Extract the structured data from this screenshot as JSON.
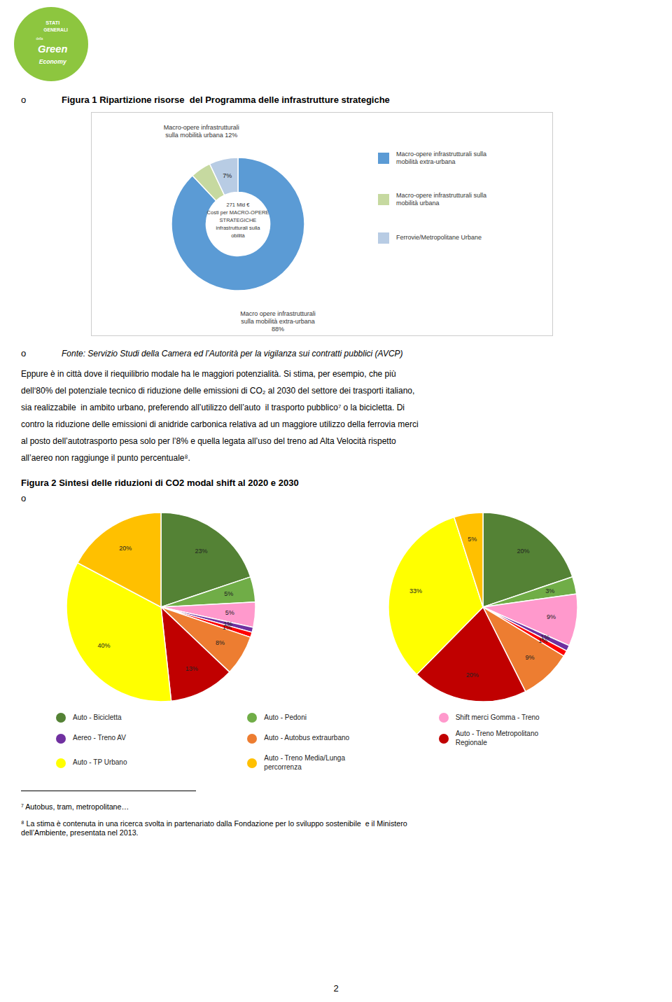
{
  "chart_data": [
    {
      "type": "donut",
      "title": "Figura 1 Ripartizione risorse  del Programma delle infrastrutture strategiche",
      "categories": [
        "Macro-opere infrastrutturali sulla\nmobilità extra-urbana",
        "Macro-opere infrastrutturali sulla\nmobilità urbana",
        "Ferrovie/Metropolitane Urbane"
      ],
      "values": [
        88,
        5,
        7
      ],
      "colors": [
        "#5b9bd5",
        "#c6d9a0",
        "#b8cce4"
      ],
      "value_labels": [
        null,
        null,
        "7%"
      ],
      "data_labels": true,
      "legend": "right",
      "annotations": [
        "271 Mld €\nCosti per MACRO-OPERE\nSTRATEGICHE\ninfrastrutturali sulla\nobilità",
        "Macro-opere infrastrutturali\nsulla mobilità urbana 12%",
        "Macro opere infrastrutturali\nsulla mobilità extra-urbana\n88%"
      ]
    },
    {
      "type": "pie",
      "title": "Figura 2 Sintesi delle riduzioni di CO2 modal shift al 2020 e 2030",
      "categories": [
        "Auto - Bicicletta",
        "Auto - Pedoni",
        "Shift merci Gomma - Treno",
        "Aereo - Treno AV",
        null,
        "Auto - Autobus extraurbano",
        "Auto - Treno Metropolitano\nRegionale",
        "Auto - TP Urbano",
        "Auto - Treno Media/Lunga\npercorrenza"
      ],
      "values": [
        23,
        5,
        5,
        1,
        1,
        8,
        13,
        40,
        20
      ],
      "value_labels": [
        "23%",
        "5%",
        "5%",
        "1%",
        "1%",
        "8%",
        "13%",
        "40%",
        "20%"
      ],
      "colors": [
        "#548235",
        "#70ad47",
        "#ff99cc",
        "#7030a0",
        "#ff0000",
        "#ed7d31",
        "#c00000",
        "#ffff00",
        "#ffc000"
      ],
      "data_labels": true,
      "legend": "bottom"
    },
    {
      "type": "pie",
      "categories": [
        "Auto - Bicicletta",
        "Auto - Pedoni",
        "Shift merci Gomma - Treno",
        "Aereo - Treno AV",
        null,
        "Auto - Autobus extraurbano",
        "Auto - Treno Metropolitano\nRegionale",
        "Auto - TP Urbano",
        "Auto - Treno Media/Lunga\npercorrenza"
      ],
      "values": [
        20,
        3,
        9,
        1,
        1,
        9,
        20,
        33,
        5
      ],
      "value_labels": [
        "20%",
        "3%",
        "9%",
        "1%",
        "1%",
        "9%",
        "20%",
        "33%",
        "5%"
      ],
      "colors": [
        "#548235",
        "#70ad47",
        "#ff99cc",
        "#7030a0",
        "#ff0000",
        "#ed7d31",
        "#c00000",
        "#ffff00",
        "#ffc000"
      ],
      "data_labels": true,
      "legend": "bottom"
    }
  ],
  "annotations": [
    "STATI",
    "GENERALI",
    "della",
    "Green",
    "Economy",
    "o",
    "Fonte: Servizio Studi della Camera ed l’Autorità per la vigilanza sui contratti pubblici (AVCP)",
    "Eppure è in città dove il riequilibrio modale ha le maggiori potenzialità. Si stima, per esempio, che più",
    "dell‘80% del potenziale tecnico di riduzione delle emissioni di CO₂ al 2030 del settore dei trasporti italiano,",
    "sia realizzabile  in ambito urbano, preferendo all’utilizzo dell’auto  il trasporto pubblico⁷ o la bicicletta. Di",
    "contro la riduzione delle emissioni di anidride carbonica relativa ad un maggiore utilizzo della ferrovia merci",
    "al posto dell’autotrasporto pesa solo per l’8% e quella legata all’uso del treno ad Alta Velocità rispetto",
    "all’aereo non raggiunge il punto percentuale⁸.",
    "⁷ Autobus, tram, metropolitane…",
    "⁸ La stima è contenuta in una ricerca svolta in partenariato dalla Fondazione per lo sviluppo sostenibile  e il Ministero\ndell’Ambiente, presentata nel 2013.",
    "2"
  ],
  "color": "#8dc63f"
}
